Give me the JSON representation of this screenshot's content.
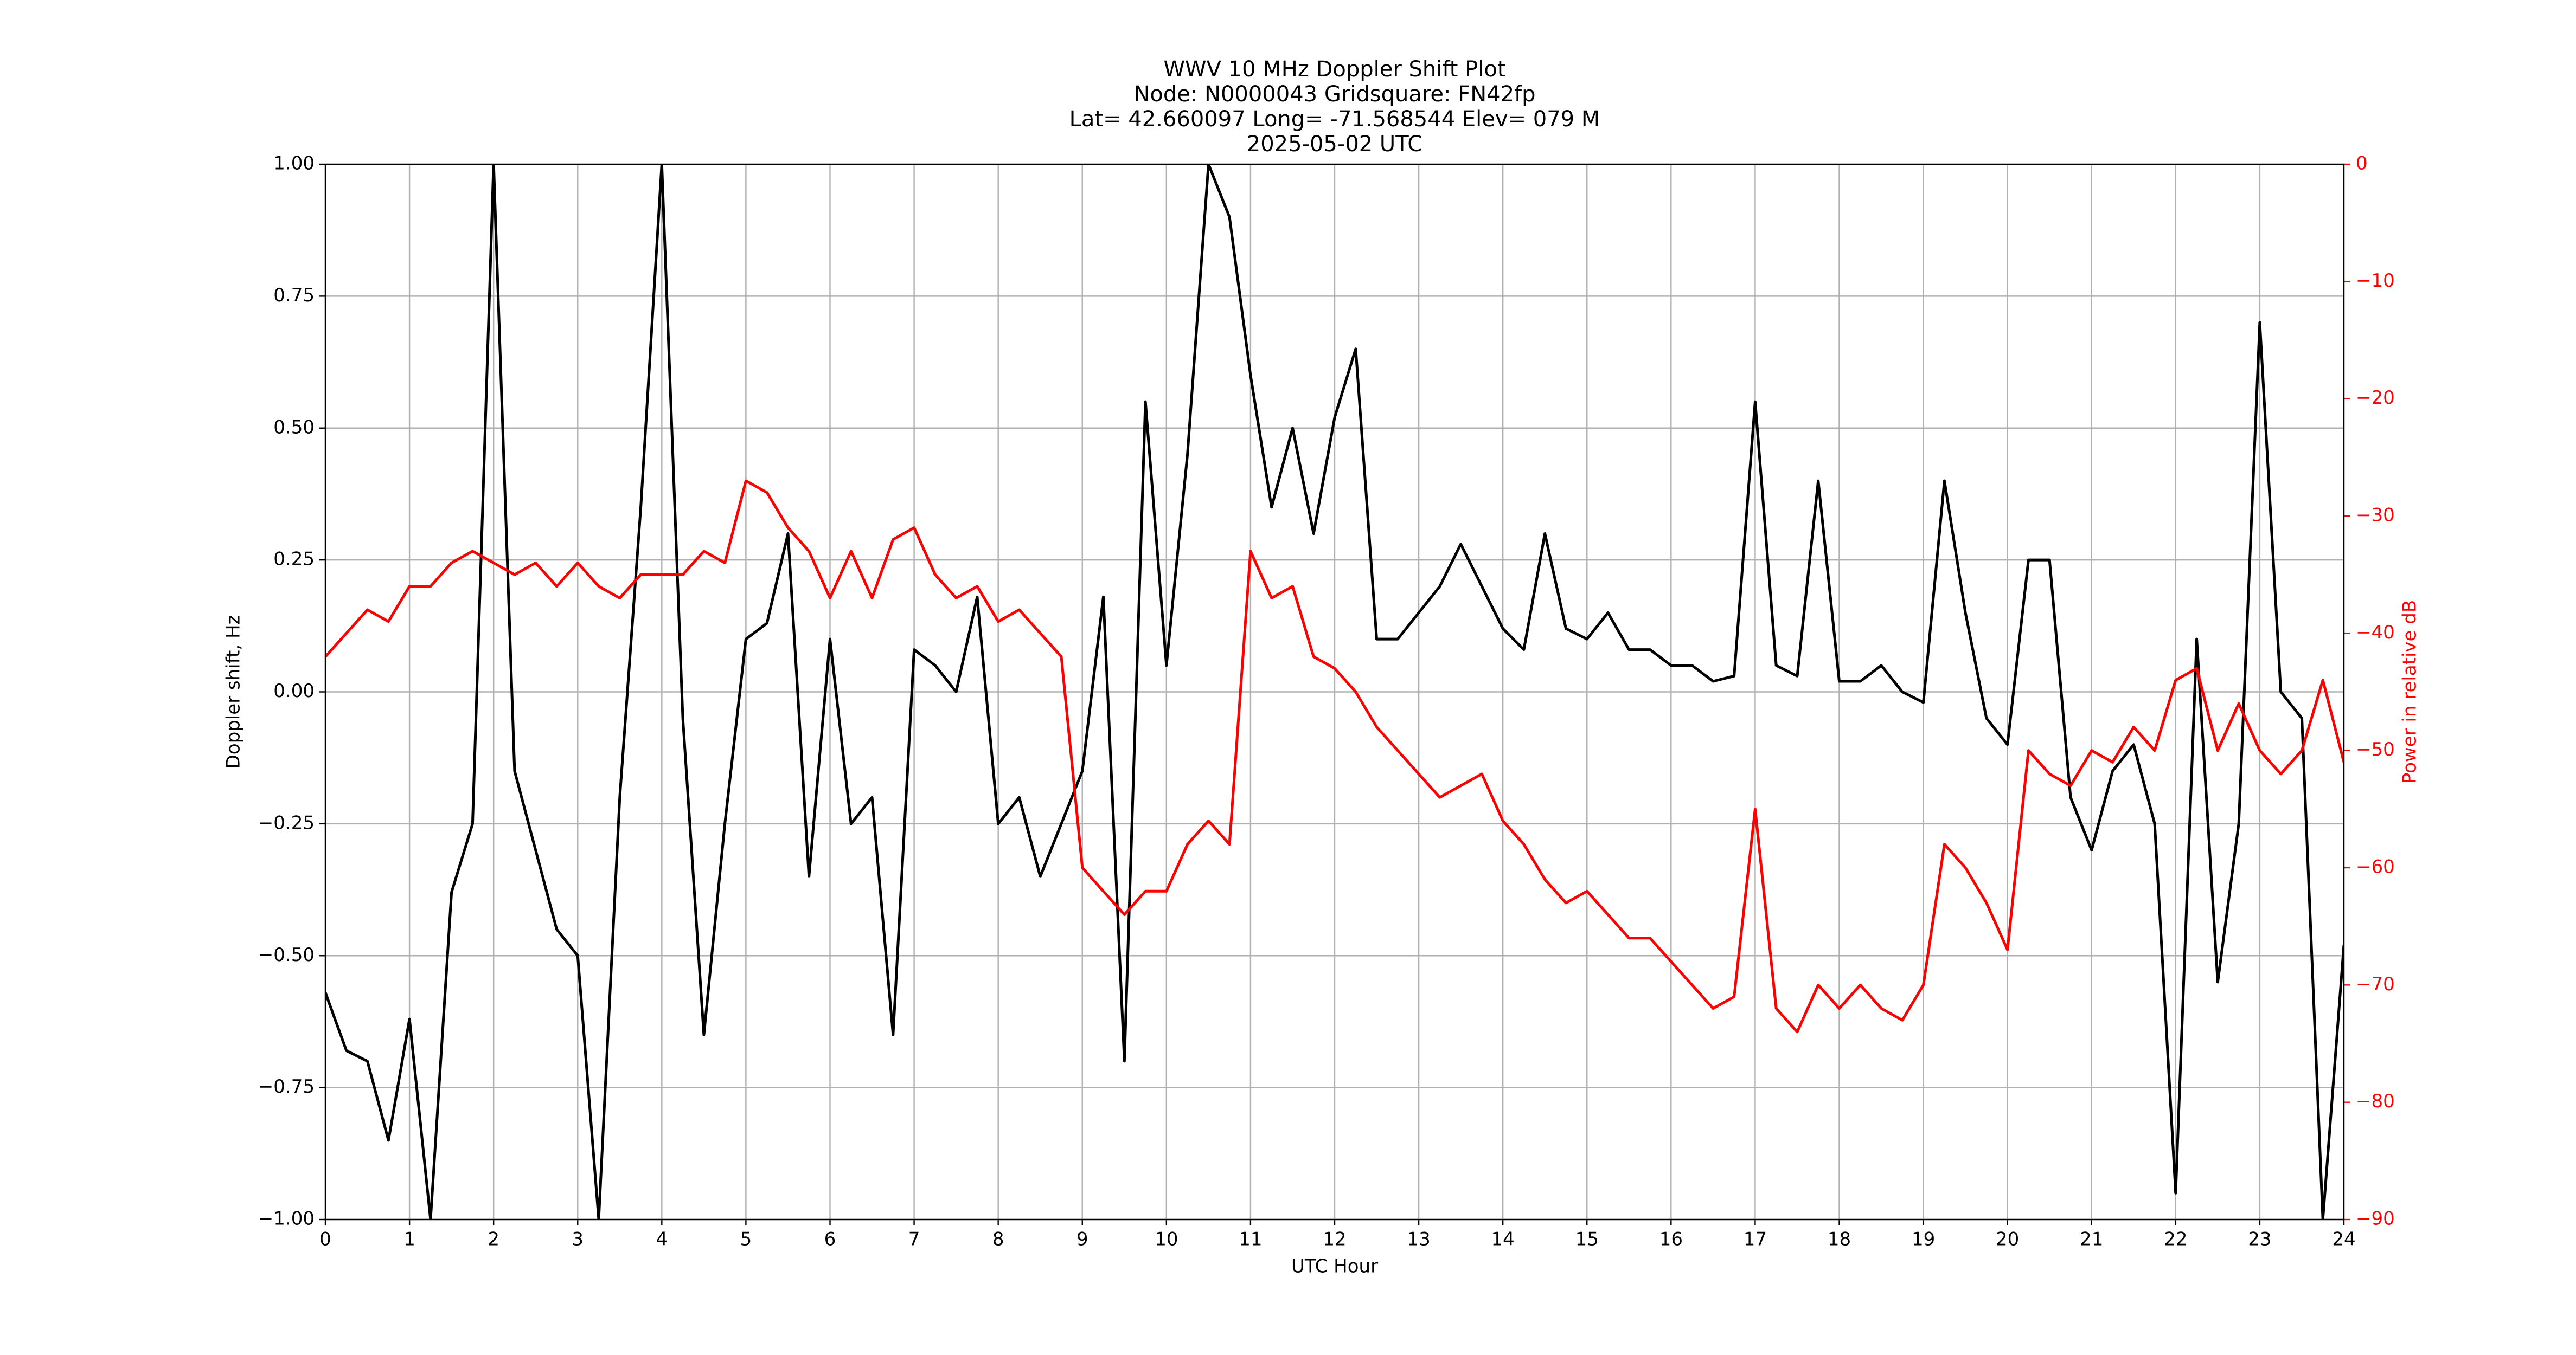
{
  "chart_data": {
    "type": "line",
    "title": [
      "WWV 10 MHz Doppler Shift Plot",
      "Node:  N0000043     Gridsquare:  FN42fp",
      "Lat= 42.660097    Long= -71.568544    Elev= 079 M",
      "2025-05-02  UTC"
    ],
    "xlabel": "UTC Hour",
    "ylabel": "Doppler shift, Hz",
    "y2label": "Power in relative dB",
    "y2color": "#ff0000",
    "grid": true,
    "x": [
      0,
      0.25,
      0.5,
      0.75,
      1,
      1.25,
      1.5,
      1.75,
      2,
      2.25,
      2.5,
      2.75,
      3,
      3.25,
      3.5,
      3.75,
      4,
      4.25,
      4.5,
      4.75,
      5,
      5.25,
      5.5,
      5.75,
      6,
      6.25,
      6.5,
      6.75,
      7,
      7.25,
      7.5,
      7.75,
      8,
      8.25,
      8.5,
      8.75,
      9,
      9.25,
      9.5,
      9.75,
      10,
      10.25,
      10.5,
      10.75,
      11,
      11.25,
      11.5,
      11.75,
      12,
      12.25,
      12.5,
      12.75,
      13,
      13.25,
      13.5,
      13.75,
      14,
      14.25,
      14.5,
      14.75,
      15,
      15.25,
      15.5,
      15.75,
      16,
      16.25,
      16.5,
      16.75,
      17,
      17.25,
      17.5,
      17.75,
      18,
      18.25,
      18.5,
      18.75,
      19,
      19.25,
      19.5,
      19.75,
      20,
      20.25,
      20.5,
      20.75,
      21,
      21.25,
      21.5,
      21.75,
      22,
      22.25,
      22.5,
      22.75,
      23,
      23.25,
      23.5,
      23.75,
      24
    ],
    "series": [
      {
        "color": "#000000",
        "axis": "y",
        "values": [
          -0.57,
          -0.68,
          -0.7,
          -0.85,
          -0.62,
          -1.0,
          -0.38,
          -0.25,
          1.0,
          -0.15,
          -0.3,
          -0.45,
          -0.5,
          -1.0,
          -0.2,
          0.35,
          1.0,
          -0.05,
          -0.65,
          -0.25,
          0.1,
          0.13,
          0.3,
          -0.35,
          0.1,
          -0.25,
          -0.2,
          -0.65,
          0.08,
          0.05,
          0.0,
          0.18,
          -0.25,
          -0.2,
          -0.35,
          -0.25,
          -0.15,
          0.18,
          -0.7,
          0.55,
          0.05,
          0.45,
          1.0,
          0.9,
          0.6,
          0.35,
          0.5,
          0.3,
          0.52,
          0.65,
          0.1,
          0.1,
          0.15,
          0.2,
          0.28,
          0.2,
          0.12,
          0.08,
          0.3,
          0.12,
          0.1,
          0.15,
          0.08,
          0.08,
          0.05,
          0.05,
          0.02,
          0.03,
          0.55,
          0.05,
          0.03,
          0.4,
          0.02,
          0.02,
          0.05,
          0.0,
          -0.02,
          0.4,
          0.15,
          -0.05,
          -0.1,
          0.25,
          0.25,
          -0.2,
          -0.3,
          -0.15,
          -0.1,
          -0.25,
          -0.95,
          0.1,
          -0.55,
          -0.25,
          0.7,
          0.0,
          -0.05,
          -1.0,
          -0.48
        ]
      },
      {
        "color": "#ff0000",
        "axis": "y2",
        "values": [
          -42,
          -40,
          -38,
          -39,
          -36,
          -36,
          -34,
          -33,
          -34,
          -35,
          -34,
          -36,
          -34,
          -36,
          -37,
          -35,
          -35,
          -35,
          -33,
          -34,
          -27,
          -28,
          -31,
          -33,
          -37,
          -33,
          -37,
          -32,
          -31,
          -35,
          -37,
          -36,
          -39,
          -38,
          -40,
          -42,
          -60,
          -62,
          -64,
          -62,
          -62,
          -58,
          -56,
          -58,
          -33,
          -37,
          -36,
          -42,
          -43,
          -45,
          -48,
          -50,
          -52,
          -54,
          -53,
          -52,
          -56,
          -58,
          -61,
          -63,
          -62,
          -64,
          -66,
          -66,
          -68,
          -70,
          -72,
          -71,
          -55,
          -72,
          -74,
          -70,
          -72,
          -70,
          -72,
          -73,
          -70,
          -58,
          -60,
          -63,
          -67,
          -50,
          -52,
          -53,
          -50,
          -51,
          -48,
          -50,
          -44,
          -43,
          -50,
          -46,
          -50,
          -52,
          -50,
          -44,
          -51
        ]
      }
    ],
    "xlim": [
      0,
      24
    ],
    "xticks": [
      0,
      1,
      2,
      3,
      4,
      5,
      6,
      7,
      8,
      9,
      10,
      11,
      12,
      13,
      14,
      15,
      16,
      17,
      18,
      19,
      20,
      21,
      22,
      23,
      24
    ],
    "ylim": [
      -1,
      1
    ],
    "yticks": [
      {
        "value": -1,
        "label": "−1.00"
      },
      {
        "value": -0.75,
        "label": "−0.75"
      },
      {
        "value": -0.5,
        "label": "−0.50"
      },
      {
        "value": -0.25,
        "label": "−0.25"
      },
      {
        "value": 0,
        "label": "0.00"
      },
      {
        "value": 0.25,
        "label": "0.25"
      },
      {
        "value": 0.5,
        "label": "0.50"
      },
      {
        "value": 0.75,
        "label": "0.75"
      },
      {
        "value": 1,
        "label": "1.00"
      }
    ],
    "y2lim": [
      -90,
      0
    ],
    "y2ticks": [
      {
        "value": -90,
        "label": "−90"
      },
      {
        "value": -80,
        "label": "−80"
      },
      {
        "value": -70,
        "label": "−70"
      },
      {
        "value": -60,
        "label": "−60"
      },
      {
        "value": -50,
        "label": "−50"
      },
      {
        "value": -40,
        "label": "−40"
      },
      {
        "value": -30,
        "label": "−30"
      },
      {
        "value": -20,
        "label": "−20"
      },
      {
        "value": -10,
        "label": "−10"
      },
      0
    ]
  }
}
